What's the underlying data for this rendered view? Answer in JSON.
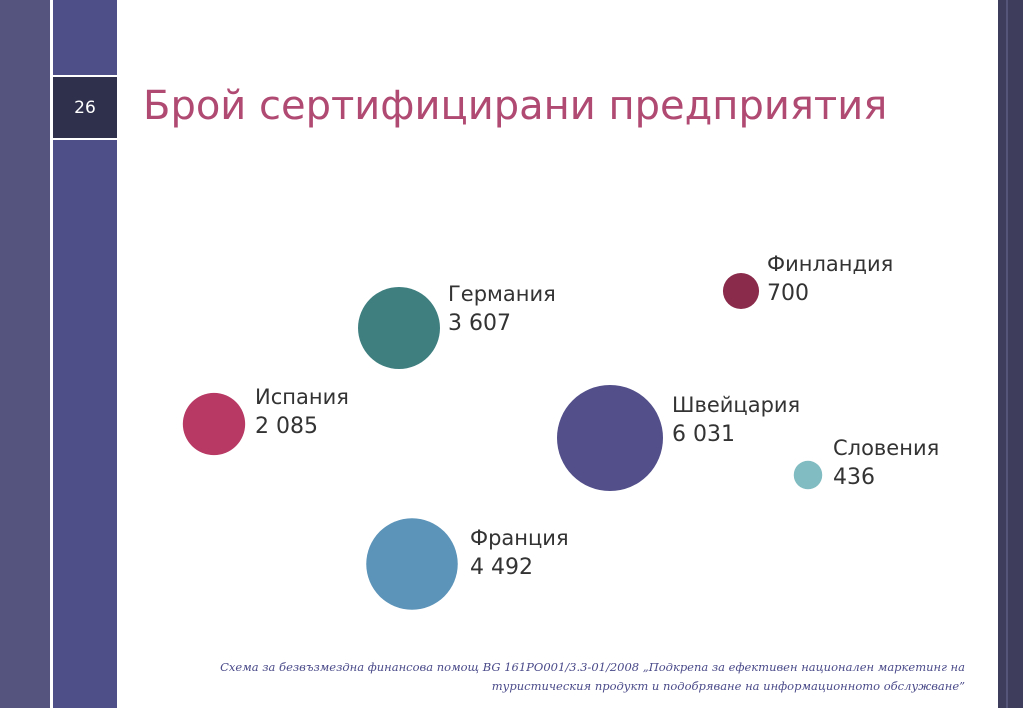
{
  "slide_number": "26",
  "chart_data": {
    "type": "bubble",
    "title": "Брой сертифицирани предприятия",
    "categories": [
      "Германия",
      "Финландия",
      "Испания",
      "Швейцария",
      "Словения",
      "Франция"
    ],
    "values": [
      3607,
      700,
      2085,
      6031,
      436,
      4492
    ],
    "value_labels": [
      "3 607",
      "700",
      "2 085",
      "6 031",
      "436",
      "4 492"
    ],
    "colors": [
      "#3f7f80",
      "#8a2b4b",
      "#b83a64",
      "#524f8a",
      "#80bcc1",
      "#5b93b9"
    ]
  },
  "footer": [
    "Схема за безвъзмездна финансова помощ  BG 161PO001/3.3-01/2008 „Подкрепа за ефективен национален маркетинг на",
    "туристическия продукт и подобряване на информационното обслужване”"
  ]
}
